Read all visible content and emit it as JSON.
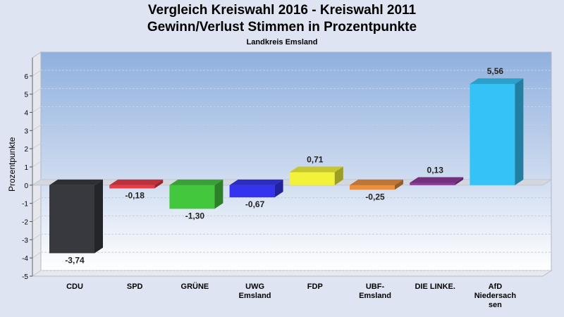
{
  "chart_data": {
    "type": "bar",
    "title": "Vergleich Kreiswahl 2016 - Kreiswahl 2011",
    "subtitle": "Gewinn/Verlust Stimmen in Prozentpunkte",
    "subsubtitle": "Landkreis Emsland",
    "ylabel": "Prozentpunkte",
    "xlabel": "",
    "ylim": [
      -5,
      7
    ],
    "yticks": [
      "-5",
      "-4",
      "-3",
      "-2",
      "-1",
      "0",
      "1",
      "2",
      "3",
      "4",
      "5",
      "6"
    ],
    "grid": true,
    "categories": [
      [
        "CDU"
      ],
      [
        "SPD"
      ],
      [
        "GRÜNE"
      ],
      [
        "UWG",
        "Emsland"
      ],
      [
        "FDP"
      ],
      [
        "UBF-",
        "Emsland"
      ],
      [
        "DIE LINKE."
      ],
      [
        "AfD",
        "Niedersach",
        "sen"
      ]
    ],
    "values": [
      -3.74,
      -0.18,
      -1.3,
      -0.67,
      0.71,
      -0.25,
      0.13,
      5.56
    ],
    "value_labels": [
      "-3,74",
      "-0,18",
      "-1,30",
      "-0,67",
      "0,71",
      "-0,25",
      "0,13",
      "5,56"
    ],
    "colors": [
      "#37393e",
      "#e83c48",
      "#43c73d",
      "#3434f0",
      "#f2f23a",
      "#ec8e3c",
      "#8c3c98",
      "#35c3f7"
    ]
  }
}
